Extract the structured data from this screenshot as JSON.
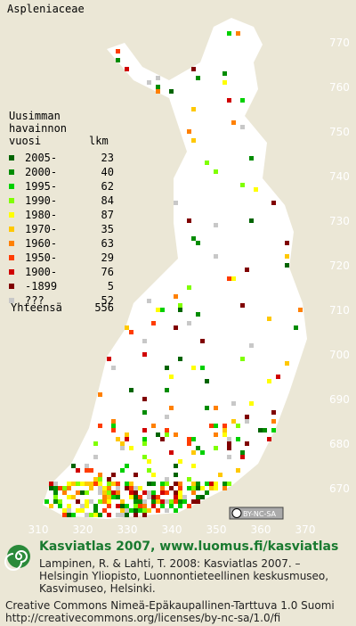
{
  "title": "Aspleniaceae",
  "legend": {
    "heading": [
      "Uusimman",
      "havainnon",
      "vuosi"
    ],
    "count_heading": "lkm",
    "entries": [
      {
        "label": "2005-",
        "count": 23,
        "color": "#006400"
      },
      {
        "label": "2000-",
        "count": 40,
        "color": "#008c00"
      },
      {
        "label": "1995-",
        "count": 62,
        "color": "#00d000"
      },
      {
        "label": "1990-",
        "count": 84,
        "color": "#80ff00"
      },
      {
        "label": "1980-",
        "count": 87,
        "color": "#ffff00"
      },
      {
        "label": "1970-",
        "count": 35,
        "color": "#ffc800"
      },
      {
        "label": "1960-",
        "count": 63,
        "color": "#ff8000"
      },
      {
        "label": "1950-",
        "count": 29,
        "color": "#ff3c00"
      },
      {
        "label": "1900-",
        "count": 76,
        "color": "#d00000"
      },
      {
        "label": "-1899",
        "count": 5,
        "color": "#800000"
      },
      {
        "label": "???",
        "count": 52,
        "color": "#c8c8c8"
      }
    ],
    "total_label": "Yhteensä",
    "total": 556
  },
  "grid": {
    "north": [
      770,
      760,
      750,
      740,
      730,
      720,
      710,
      700,
      690,
      680,
      670
    ],
    "east": [
      310,
      320,
      330,
      340,
      350,
      360,
      370
    ]
  },
  "license_badge": "BY-NC-SA",
  "footer": {
    "site": "Kasviatlas 2007, www.luomus.fi/kasviatlas",
    "citation": [
      "Lampinen, R. & Lahti, T. 2008: Kasviatlas 2007. –",
      "Helsingin Yliopisto, Luonnontieteellinen keskusmuseo,",
      "Kasvimuseo, Helsinki."
    ],
    "license": [
      "Creative Commons Nimeä-Epäkaupallinen-Tarttuva 1.0 Suomi",
      "http://creativecommons.org/licenses/by-nc-sa/1.0/fi"
    ]
  }
}
